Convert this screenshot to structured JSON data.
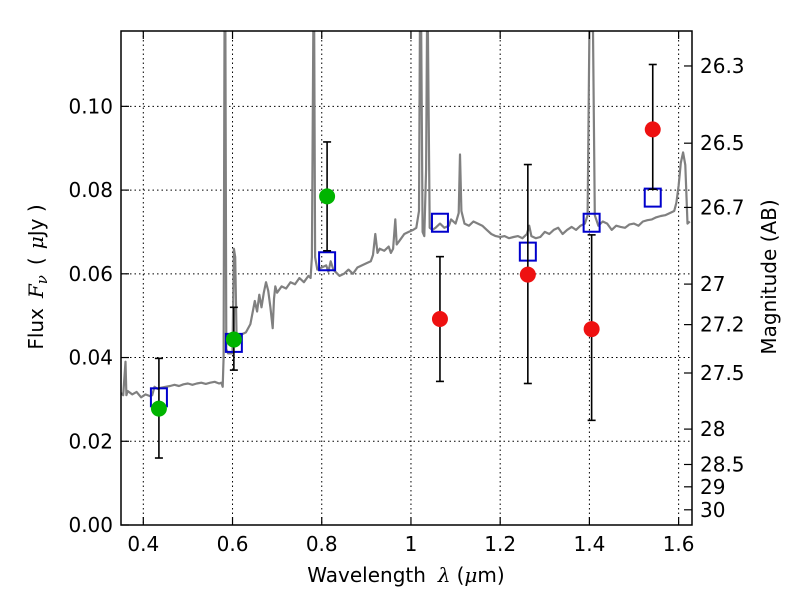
{
  "chart_data": {
    "type": "scatter",
    "xlabel_text": "Wavelength",
    "xlabel_symbol": "λ",
    "xlabel_unit_open": "(",
    "xlabel_unit_mu": "μ",
    "xlabel_unit_rest": "m)",
    "ylabel_text": "Flux",
    "ylabel_symbol_F": "F",
    "ylabel_symbol_nu": "ν",
    "ylabel_unit_open": "(",
    "ylabel_unit_mu": "μ",
    "ylabel_unit_rest": "Jy )",
    "y2label": "Magnitude (AB)",
    "xlim": [
      0.35,
      1.63
    ],
    "ylim": [
      0.0,
      0.118
    ],
    "grid": true,
    "x_ticks": [
      {
        "value": 0.4,
        "label": "0.4"
      },
      {
        "value": 0.6,
        "label": "0.6"
      },
      {
        "value": 0.8,
        "label": "0.8"
      },
      {
        "value": 1.0,
        "label": "1"
      },
      {
        "value": 1.2,
        "label": "1.2"
      },
      {
        "value": 1.4,
        "label": "1.4"
      },
      {
        "value": 1.6,
        "label": "1.6"
      }
    ],
    "y_ticks": [
      {
        "value": 0.0,
        "label": "0.00"
      },
      {
        "value": 0.02,
        "label": "0.02"
      },
      {
        "value": 0.04,
        "label": "0.04"
      },
      {
        "value": 0.06,
        "label": "0.06"
      },
      {
        "value": 0.08,
        "label": "0.08"
      },
      {
        "value": 0.1,
        "label": "0.10"
      }
    ],
    "mag_ticks": [
      {
        "mag": 26.3,
        "label": "26.3"
      },
      {
        "mag": 26.5,
        "label": "26.5"
      },
      {
        "mag": 26.7,
        "label": "26.7"
      },
      {
        "mag": 27.0,
        "label": "27"
      },
      {
        "mag": 27.2,
        "label": "27.2"
      },
      {
        "mag": 27.5,
        "label": "27.5"
      },
      {
        "mag": 28.0,
        "label": "28"
      },
      {
        "mag": 28.5,
        "label": "28.5"
      },
      {
        "mag": 29.0,
        "label": "29"
      },
      {
        "mag": 30.0,
        "label": "30"
      }
    ],
    "series": [
      {
        "name": "model_spectrum",
        "kind": "line",
        "color": "#808080",
        "points": [
          [
            0.35,
            0.0315
          ],
          [
            0.355,
            0.031
          ],
          [
            0.36,
            0.039
          ],
          [
            0.362,
            0.031
          ],
          [
            0.365,
            0.032
          ],
          [
            0.375,
            0.0312
          ],
          [
            0.385,
            0.0318
          ],
          [
            0.395,
            0.0305
          ],
          [
            0.405,
            0.0312
          ],
          [
            0.415,
            0.0308
          ],
          [
            0.42,
            0.031
          ],
          [
            0.425,
            0.033
          ],
          [
            0.432,
            0.0325
          ],
          [
            0.44,
            0.0328
          ],
          [
            0.45,
            0.033
          ],
          [
            0.46,
            0.0332
          ],
          [
            0.47,
            0.0335
          ],
          [
            0.48,
            0.0332
          ],
          [
            0.49,
            0.0336
          ],
          [
            0.5,
            0.0338
          ],
          [
            0.51,
            0.0335
          ],
          [
            0.52,
            0.0338
          ],
          [
            0.53,
            0.034
          ],
          [
            0.54,
            0.0337
          ],
          [
            0.55,
            0.034
          ],
          [
            0.56,
            0.0342
          ],
          [
            0.57,
            0.0338
          ],
          [
            0.575,
            0.034
          ],
          [
            0.578,
            0.033
          ],
          [
            0.58,
            0.04
          ],
          [
            0.582,
            0.118
          ],
          [
            0.584,
            0.118
          ],
          [
            0.586,
            0.042
          ],
          [
            0.59,
            0.041
          ],
          [
            0.6,
            0.041
          ],
          [
            0.603,
            0.066
          ],
          [
            0.606,
            0.064
          ],
          [
            0.609,
            0.046
          ],
          [
            0.612,
            0.044
          ],
          [
            0.62,
            0.0455
          ],
          [
            0.63,
            0.046
          ],
          [
            0.64,
            0.048
          ],
          [
            0.65,
            0.0535
          ],
          [
            0.655,
            0.051
          ],
          [
            0.66,
            0.055
          ],
          [
            0.665,
            0.052
          ],
          [
            0.67,
            0.0555
          ],
          [
            0.675,
            0.058
          ],
          [
            0.68,
            0.056
          ],
          [
            0.685,
            0.052
          ],
          [
            0.69,
            0.047
          ],
          [
            0.693,
            0.054
          ],
          [
            0.696,
            0.057
          ],
          [
            0.7,
            0.0555
          ],
          [
            0.71,
            0.057
          ],
          [
            0.72,
            0.0565
          ],
          [
            0.73,
            0.058
          ],
          [
            0.74,
            0.0575
          ],
          [
            0.75,
            0.059
          ],
          [
            0.76,
            0.058
          ],
          [
            0.77,
            0.0595
          ],
          [
            0.775,
            0.059
          ],
          [
            0.778,
            0.064
          ],
          [
            0.781,
            0.118
          ],
          [
            0.783,
            0.118
          ],
          [
            0.785,
            0.064
          ],
          [
            0.79,
            0.061
          ],
          [
            0.8,
            0.0615
          ],
          [
            0.81,
            0.062
          ],
          [
            0.815,
            0.0605
          ],
          [
            0.82,
            0.063
          ],
          [
            0.826,
            0.061
          ],
          [
            0.835,
            0.06
          ],
          [
            0.84,
            0.0595
          ],
          [
            0.85,
            0.06
          ],
          [
            0.86,
            0.061
          ],
          [
            0.87,
            0.06
          ],
          [
            0.88,
            0.0615
          ],
          [
            0.89,
            0.062
          ],
          [
            0.9,
            0.0625
          ],
          [
            0.91,
            0.063
          ],
          [
            0.915,
            0.0645
          ],
          [
            0.92,
            0.0695
          ],
          [
            0.925,
            0.065
          ],
          [
            0.93,
            0.066
          ],
          [
            0.94,
            0.0655
          ],
          [
            0.95,
            0.0665
          ],
          [
            0.955,
            0.065
          ],
          [
            0.96,
            0.066
          ],
          [
            0.965,
            0.073
          ],
          [
            0.968,
            0.067
          ],
          [
            0.975,
            0.068
          ],
          [
            0.985,
            0.0695
          ],
          [
            0.995,
            0.07
          ],
          [
            1.005,
            0.0705
          ],
          [
            1.012,
            0.071
          ],
          [
            1.018,
            0.075
          ],
          [
            1.02,
            0.118
          ],
          [
            1.023,
            0.118
          ],
          [
            1.026,
            0.07
          ],
          [
            1.03,
            0.069
          ],
          [
            1.034,
            0.085
          ],
          [
            1.036,
            0.118
          ],
          [
            1.038,
            0.118
          ],
          [
            1.042,
            0.071
          ],
          [
            1.048,
            0.0705
          ],
          [
            1.055,
            0.071
          ],
          [
            1.065,
            0.072
          ],
          [
            1.075,
            0.071
          ],
          [
            1.085,
            0.0715
          ],
          [
            1.09,
            0.073
          ],
          [
            1.1,
            0.072
          ],
          [
            1.107,
            0.0745
          ],
          [
            1.11,
            0.0885
          ],
          [
            1.113,
            0.075
          ],
          [
            1.12,
            0.072
          ],
          [
            1.13,
            0.0715
          ],
          [
            1.14,
            0.0725
          ],
          [
            1.15,
            0.072
          ],
          [
            1.16,
            0.0715
          ],
          [
            1.17,
            0.0705
          ],
          [
            1.18,
            0.0695
          ],
          [
            1.19,
            0.069
          ],
          [
            1.2,
            0.0688
          ],
          [
            1.21,
            0.069
          ],
          [
            1.22,
            0.0685
          ],
          [
            1.23,
            0.0688
          ],
          [
            1.24,
            0.069
          ],
          [
            1.25,
            0.0685
          ],
          [
            1.26,
            0.0695
          ],
          [
            1.265,
            0.0715
          ],
          [
            1.27,
            0.069
          ],
          [
            1.28,
            0.0685
          ],
          [
            1.29,
            0.0688
          ],
          [
            1.3,
            0.07
          ],
          [
            1.31,
            0.0695
          ],
          [
            1.32,
            0.0705
          ],
          [
            1.33,
            0.071
          ],
          [
            1.34,
            0.0695
          ],
          [
            1.35,
            0.0705
          ],
          [
            1.36,
            0.0712
          ],
          [
            1.37,
            0.0705
          ],
          [
            1.38,
            0.0715
          ],
          [
            1.39,
            0.072
          ],
          [
            1.396,
            0.074
          ],
          [
            1.4,
            0.118
          ],
          [
            1.408,
            0.118
          ],
          [
            1.412,
            0.074
          ],
          [
            1.42,
            0.0715
          ],
          [
            1.43,
            0.0725
          ],
          [
            1.44,
            0.072
          ],
          [
            1.45,
            0.0705
          ],
          [
            1.46,
            0.0715
          ],
          [
            1.47,
            0.0712
          ],
          [
            1.48,
            0.071
          ],
          [
            1.49,
            0.0718
          ],
          [
            1.5,
            0.072
          ],
          [
            1.51,
            0.0715
          ],
          [
            1.52,
            0.0725
          ],
          [
            1.53,
            0.0728
          ],
          [
            1.54,
            0.073
          ],
          [
            1.55,
            0.0735
          ],
          [
            1.56,
            0.0738
          ],
          [
            1.57,
            0.074
          ],
          [
            1.58,
            0.0745
          ],
          [
            1.59,
            0.075
          ],
          [
            1.595,
            0.077
          ],
          [
            1.6,
            0.081
          ],
          [
            1.605,
            0.0865
          ],
          [
            1.61,
            0.089
          ],
          [
            1.615,
            0.086
          ],
          [
            1.62,
            0.072
          ],
          [
            1.625,
            0.0725
          ]
        ]
      },
      {
        "name": "model_photometry",
        "kind": "open-square",
        "color": "#0000cc",
        "points": [
          [
            0.435,
            0.0305
          ],
          [
            0.603,
            0.0435
          ],
          [
            0.812,
            0.063
          ],
          [
            1.065,
            0.0722
          ],
          [
            1.262,
            0.0653
          ],
          [
            1.405,
            0.0722
          ],
          [
            1.542,
            0.0782
          ]
        ]
      },
      {
        "name": "detections",
        "kind": "filled-circle",
        "color": "#00b400",
        "points": [
          {
            "x": 0.435,
            "y": 0.0278,
            "err_low": 0.016,
            "err_high": 0.0398
          },
          {
            "x": 0.603,
            "y": 0.0443,
            "err_low": 0.037,
            "err_high": 0.052
          },
          {
            "x": 0.812,
            "y": 0.0785,
            "err_low": 0.0655,
            "err_high": 0.0915
          }
        ]
      },
      {
        "name": "marginal_detections",
        "kind": "filled-circle",
        "color": "#ee1111",
        "points": [
          {
            "x": 1.065,
            "y": 0.0492,
            "err_low": 0.0343,
            "err_high": 0.0641
          },
          {
            "x": 1.262,
            "y": 0.0598,
            "err_low": 0.0338,
            "err_high": 0.0861
          },
          {
            "x": 1.405,
            "y": 0.0468,
            "err_low": 0.025,
            "err_high": 0.0693
          },
          {
            "x": 1.542,
            "y": 0.0945,
            "err_low": 0.0802,
            "err_high": 0.11
          }
        ]
      }
    ]
  }
}
